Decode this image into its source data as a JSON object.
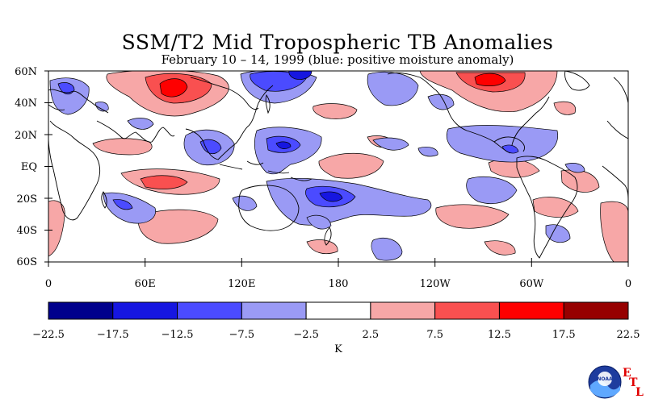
{
  "title": "SSM/T2 Mid Tropospheric TB Anomalies",
  "subtitle": "February 10 – 14, 1999 (blue: positive moisture anomaly)",
  "lat_labels": [
    "60N",
    "40N",
    "20N",
    "EQ",
    "20S",
    "40S",
    "60S"
  ],
  "lon_labels": [
    "0",
    "60E",
    "120E",
    "180",
    "120W",
    "60W",
    "0"
  ],
  "colorbar": {
    "unit": "K",
    "levels": [
      "-22.5",
      "-17.5",
      "-12.5",
      "-7.5",
      "-2.5",
      "2.5",
      "7.5",
      "12.5",
      "17.5",
      "22.5"
    ],
    "colors": [
      "#00008c",
      "#1616e0",
      "#4b4bff",
      "#9a9af5",
      "#ffffff",
      "#f7a7a7",
      "#f95050",
      "#fe0000",
      "#960000"
    ]
  },
  "logo": {
    "text_e": "E",
    "text_t": "T",
    "text_l": "L",
    "badge": "NOAA"
  }
}
